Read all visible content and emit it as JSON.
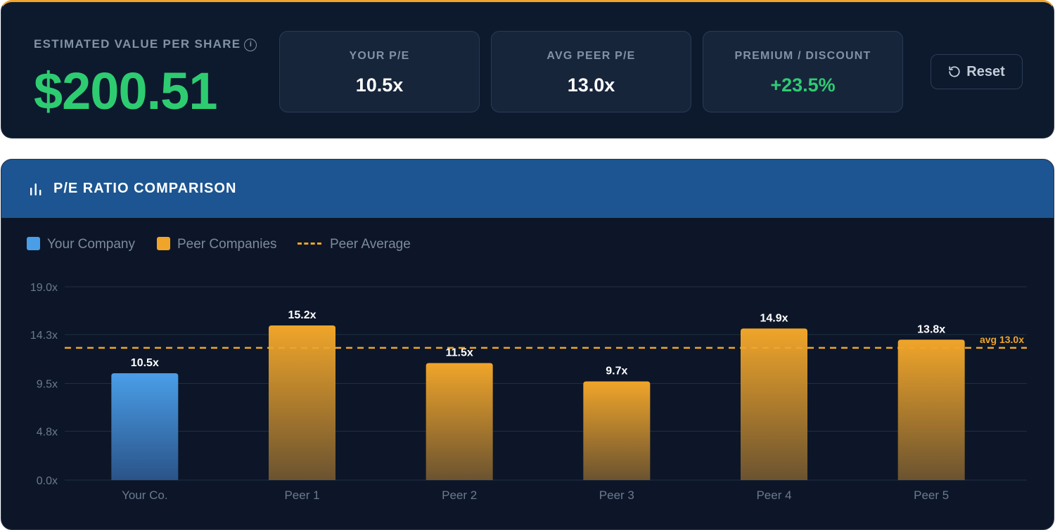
{
  "summary": {
    "estimated_label": "ESTIMATED VALUE PER SHARE",
    "info_glyph": "i",
    "estimated_value": "$200.51",
    "stats": [
      {
        "label": "YOUR P/E",
        "value": "10.5x"
      },
      {
        "label": "AVG PEER P/E",
        "value": "13.0x"
      },
      {
        "label": "PREMIUM / DISCOUNT",
        "value": "+23.5%"
      }
    ],
    "reset_label": "Reset",
    "colors": {
      "accent": "#f0a52a",
      "positive": "#2ecc71"
    }
  },
  "chart_header": {
    "icon": "bar-chart-icon",
    "title": "P/E RATIO COMPARISON"
  },
  "legend": [
    {
      "label": "Your Company",
      "color": "#4a9ee8"
    },
    {
      "label": "Peer Companies",
      "color": "#f0a52a"
    },
    {
      "label": "Peer Average",
      "color": "#f0a52a"
    }
  ],
  "chart_data": {
    "type": "bar",
    "categories": [
      "Your Co.",
      "Peer 1",
      "Peer 2",
      "Peer 3",
      "Peer 4",
      "Peer 5"
    ],
    "values": [
      10.5,
      15.2,
      11.5,
      9.7,
      14.9,
      13.8
    ],
    "value_labels": [
      "10.5x",
      "15.2x",
      "11.5x",
      "9.7x",
      "14.9x",
      "13.8x"
    ],
    "y_ticks": [
      0,
      4.8,
      9.5,
      14.3,
      19.0
    ],
    "y_tick_labels": [
      "0.0x",
      "4.8x",
      "9.5x",
      "14.3x",
      "19.0x"
    ],
    "ylim": [
      0,
      19.0
    ],
    "reference_line": {
      "value": 13.0,
      "label": "avg 13.0x"
    },
    "grid": true,
    "legend_position": "top-left",
    "colors": {
      "your_company": "#4a9ee8",
      "peers": "#f0a52a"
    }
  }
}
